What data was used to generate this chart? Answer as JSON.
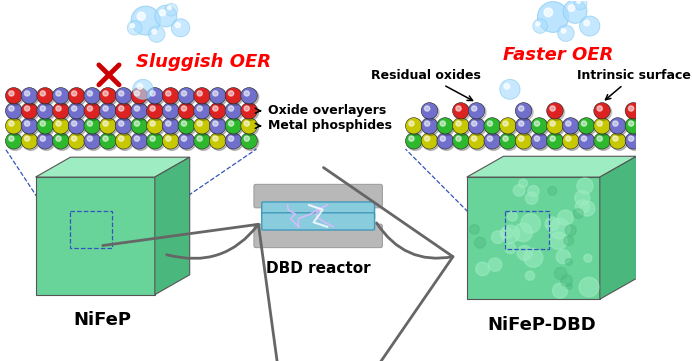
{
  "background_color": "#ffffff",
  "fig_width": 6.92,
  "fig_height": 3.61,
  "left_label": "NiFeP",
  "right_label": "NiFeP-DBD",
  "center_label": "DBD reactor",
  "left_oer": "Sluggish OER",
  "right_oer": "Faster OER",
  "label_oxide": "Oxide overlayers",
  "label_metal": "Metal phosphides",
  "label_residual": "Residual oxides",
  "label_intrinsic": "Intrinsic surface",
  "oer_color": "#ff0000",
  "box_face_color": "#68d49a",
  "box_top_color": "#9eecc2",
  "box_right_color": "#4ab87c",
  "arrow_color": "#666666",
  "dbd_plate_color": "#88ccdd",
  "dbd_frame_color": "#b8b8b8",
  "dbd_gap_color": "#7755aa",
  "bubble_color": "#aaddff",
  "cross_color": "#cc0000",
  "text_color": "#000000",
  "dash_color": "#3355bb"
}
